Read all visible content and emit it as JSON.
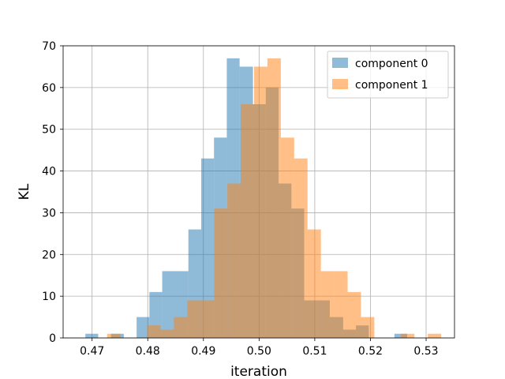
{
  "chart_data": {
    "type": "histogram",
    "title": "",
    "xlabel": "iteration",
    "ylabel": "KL",
    "xlim": [
      0.4648,
      0.5351
    ],
    "ylim": [
      0,
      70
    ],
    "xticks": [
      0.47,
      0.48,
      0.49,
      0.5,
      0.51,
      0.52,
      0.53
    ],
    "yticks": [
      0,
      10,
      20,
      30,
      40,
      50,
      60,
      70
    ],
    "grid": true,
    "legend_position": "top-right",
    "series": [
      {
        "name": "component 0",
        "color": "#1f77b4",
        "alpha": 0.5,
        "bin_edges": [
          0.4688,
          0.4711,
          0.4734,
          0.4757,
          0.478,
          0.4803,
          0.4826,
          0.485,
          0.4873,
          0.4896,
          0.4919,
          0.4942,
          0.4965,
          0.4989,
          0.5012,
          0.5035,
          0.5058,
          0.5081,
          0.5104,
          0.5127,
          0.5151,
          0.5174,
          0.5197,
          0.522,
          0.5243,
          0.5266,
          0.5289
        ],
        "counts": [
          1,
          0,
          1,
          0,
          5,
          11,
          16,
          16,
          26,
          43,
          48,
          67,
          65,
          56,
          60,
          37,
          31,
          9,
          9,
          5,
          2,
          3,
          0,
          0,
          1,
          0
        ]
      },
      {
        "name": "component 1",
        "color": "#ff7f0e",
        "alpha": 0.5,
        "bin_edges": [
          0.4727,
          0.4751,
          0.4775,
          0.4799,
          0.4823,
          0.4847,
          0.4871,
          0.4895,
          0.4919,
          0.4943,
          0.4967,
          0.4991,
          0.5015,
          0.5039,
          0.5063,
          0.5087,
          0.5111,
          0.5135,
          0.5159,
          0.5183,
          0.5207,
          0.5231,
          0.5255,
          0.5279,
          0.5303,
          0.5327
        ],
        "counts": [
          1,
          0,
          0,
          3,
          2,
          5,
          9,
          9,
          31,
          37,
          56,
          65,
          67,
          48,
          43,
          26,
          16,
          16,
          11,
          5,
          0,
          0,
          1,
          0,
          1
        ]
      }
    ]
  }
}
